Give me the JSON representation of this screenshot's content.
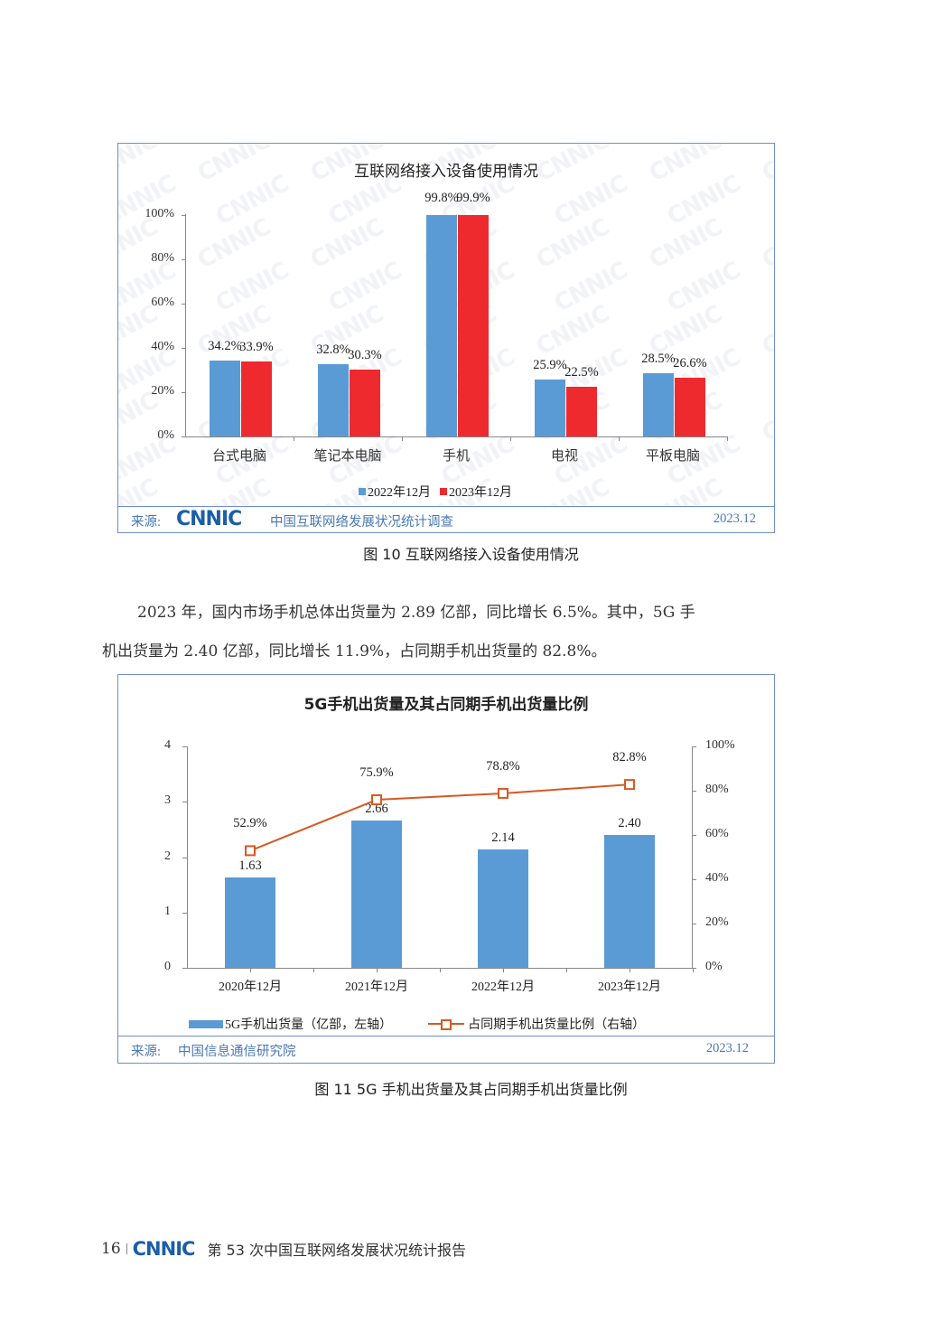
{
  "figure10": {
    "chart_title": "互联网络接入设备使用情况",
    "caption": "图 10  互联网络接入设备使用情况",
    "source_label": "来源:",
    "source_logo": "CNNIC",
    "source_text": "中国互联网络发展状况统计调查",
    "source_date": "2023.12",
    "watermark": "CNNIC",
    "y_ticks": [
      "0%",
      "20%",
      "40%",
      "60%",
      "80%",
      "100%"
    ],
    "categories": [
      "台式电脑",
      "笔记本电脑",
      "手机",
      "电视",
      "平板电脑"
    ],
    "series": [
      {
        "name": "2022年12月",
        "color": "#5b9bd5",
        "labels": [
          "34.2%",
          "32.8%",
          "99.8%",
          "25.9%",
          "28.5%"
        ]
      },
      {
        "name": "2023年12月",
        "color": "#ee2a2e",
        "labels": [
          "33.9%",
          "30.3%",
          "99.9%",
          "22.5%",
          "26.6%"
        ]
      }
    ]
  },
  "paragraph": {
    "line1": "2023 年，国内市场手机总体出货量为 2.89 亿部，同比增长 6.5%。其中，5G 手",
    "line2": "机出货量为 2.40 亿部，同比增长 11.9%，占同期手机出货量的 82.8%。"
  },
  "figure11": {
    "chart_title": "5G手机出货量及其占同期手机出货量比例",
    "caption": "图 11  5G 手机出货量及其占同期手机出货量比例",
    "source_label": "来源:",
    "source_text": "中国信息通信研究院",
    "source_date": "2023.12",
    "left_ticks": [
      "0",
      "1",
      "2",
      "3",
      "4"
    ],
    "right_ticks": [
      "0%",
      "20%",
      "40%",
      "60%",
      "80%",
      "100%"
    ],
    "categories": [
      "2020年12月",
      "2021年12月",
      "2022年12月",
      "2023年12月"
    ],
    "bar_labels": [
      "1.63",
      "2.66",
      "2.14",
      "2.40"
    ],
    "line_labels": [
      "52.9%",
      "75.9%",
      "78.8%",
      "82.8%"
    ],
    "legend_bar": "5G手机出货量（亿部，左轴）",
    "legend_line": "占同期手机出货量比例（右轴）",
    "bar_color": "#5b9bd5",
    "line_color": "#d45a22"
  },
  "footer": {
    "page_number": "16",
    "logo": "CNNIC",
    "title": "第 53 次中国互联网络发展状况统计报告"
  },
  "chart_data": [
    {
      "type": "bar",
      "title": "互联网络接入设备使用情况",
      "categories": [
        "台式电脑",
        "笔记本电脑",
        "手机",
        "电视",
        "平板电脑"
      ],
      "series": [
        {
          "name": "2022年12月",
          "values": [
            34.2,
            32.8,
            99.8,
            25.9,
            28.5
          ]
        },
        {
          "name": "2023年12月",
          "values": [
            33.9,
            30.3,
            99.9,
            22.5,
            26.6
          ]
        }
      ],
      "xlabel": "",
      "ylabel": "",
      "ylim": [
        0,
        100
      ],
      "y_ticks": [
        "0%",
        "20%",
        "40%",
        "60%",
        "80%",
        "100%"
      ],
      "legend_position": "bottom",
      "grid": false,
      "source": "来源: CNNIC 中国互联网络发展状况统计调查 2023.12"
    },
    {
      "type": "bar+line",
      "title": "5G手机出货量及其占同期手机出货量比例",
      "categories": [
        "2020年12月",
        "2021年12月",
        "2022年12月",
        "2023年12月"
      ],
      "series": [
        {
          "name": "5G手机出货量（亿部，左轴）",
          "type": "bar",
          "axis": "left",
          "values": [
            1.63,
            2.66,
            2.14,
            2.4
          ]
        },
        {
          "name": "占同期手机出货量比例（右轴）",
          "type": "line",
          "axis": "right",
          "values": [
            52.9,
            75.9,
            78.8,
            82.8
          ]
        }
      ],
      "ylim_left": [
        0,
        4
      ],
      "ylim_right": [
        0,
        100
      ],
      "left_ticks": [
        "0",
        "1",
        "2",
        "3",
        "4"
      ],
      "right_ticks": [
        "0%",
        "20%",
        "40%",
        "60%",
        "80%",
        "100%"
      ],
      "legend_position": "bottom",
      "grid": false,
      "source": "来源: 中国信息通信研究院 2023.12"
    }
  ]
}
